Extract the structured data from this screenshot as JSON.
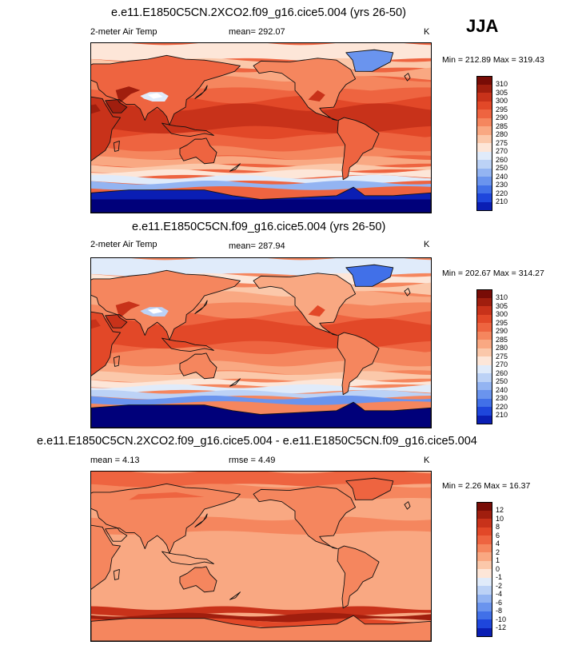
{
  "season": "JJA",
  "colors": {
    "abs": [
      "#00007a",
      "#0a1eb4",
      "#1e46dc",
      "#4170e8",
      "#6a94ee",
      "#93b4f2",
      "#bcd2f6",
      "#e0ebfa",
      "#fde6d8",
      "#fbc8aa",
      "#f9a882",
      "#f5865e",
      "#ee6440",
      "#e24828",
      "#c8321a",
      "#a01e0e",
      "#780c06"
    ],
    "diff": [
      "#00007a",
      "#0a1eb4",
      "#1e46dc",
      "#4170e8",
      "#6a94ee",
      "#93b4f2",
      "#bcd2f6",
      "#e0ebfa",
      "#fde6d8",
      "#fbc8aa",
      "#f9a882",
      "#f5865e",
      "#ee6440",
      "#e24828",
      "#c8321a",
      "#a01e0e",
      "#780c06"
    ]
  },
  "panels": [
    {
      "title": "e.e11.E1850C5CN.2XCO2.f09_g16.cice5.004 (yrs 26-50)",
      "left_label": "2-meter Air Temp",
      "mid_label": "mean= 292.07",
      "units": "K",
      "minmax": "Min = 212.89 Max = 319.43",
      "colorbar_labels": [
        "310",
        "305",
        "300",
        "295",
        "290",
        "285",
        "280",
        "275",
        "270",
        "260",
        "250",
        "240",
        "230",
        "220",
        "210"
      ],
      "offset": 0
    },
    {
      "title": "e.e11.E1850C5CN.f09_g16.cice5.004 (yrs 26-50)",
      "left_label": "2-meter Air Temp",
      "mid_label": "mean= 287.94",
      "units": "K",
      "minmax": "Min = 202.67 Max = 314.27",
      "colorbar_labels": [
        "310",
        "305",
        "300",
        "295",
        "290",
        "285",
        "280",
        "275",
        "270",
        "260",
        "250",
        "240",
        "230",
        "220",
        "210"
      ],
      "offset": -1
    },
    {
      "title": "e.e11.E1850C5CN.2XCO2.f09_g16.cice5.004 - e.e11.E1850C5CN.f09_g16.cice5.004",
      "left_label": "mean =  4.13",
      "mid_label": "rmse =  4.49",
      "units": "K",
      "minmax": "Min =  2.26 Max = 16.37",
      "colorbar_labels": [
        "12",
        "10",
        "8",
        "6",
        "4",
        "2",
        "1",
        "0",
        "-1",
        "-2",
        "-4",
        "-6",
        "-8",
        "-10",
        "-12"
      ],
      "offset": 0
    }
  ]
}
